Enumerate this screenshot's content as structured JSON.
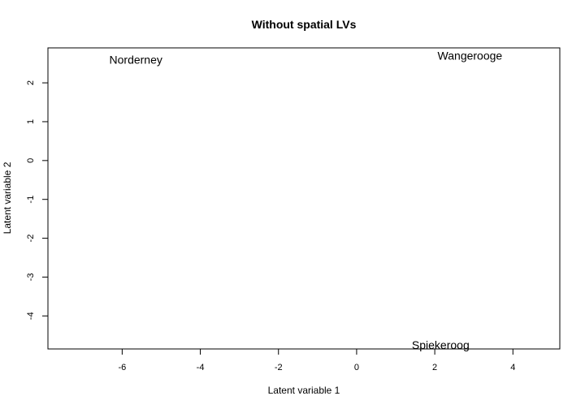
{
  "chart_data": {
    "type": "scatter",
    "title": "Without spatial LVs",
    "xlabel": "Latent variable 1",
    "ylabel": "Latent variable 2",
    "xlim": [
      -7.9,
      5.2
    ],
    "ylim": [
      -4.85,
      2.9
    ],
    "xticks": [
      -6,
      -4,
      -2,
      0,
      2,
      4
    ],
    "yticks": [
      -4,
      -3,
      -2,
      -1,
      0,
      1,
      2
    ],
    "points": [
      {
        "label": "Norderney",
        "x": -5.65,
        "y": 2.6
      },
      {
        "label": "Wangerooge",
        "x": 2.9,
        "y": 2.7
      },
      {
        "label": "Spiekeroog",
        "x": 2.15,
        "y": -4.75
      }
    ]
  }
}
